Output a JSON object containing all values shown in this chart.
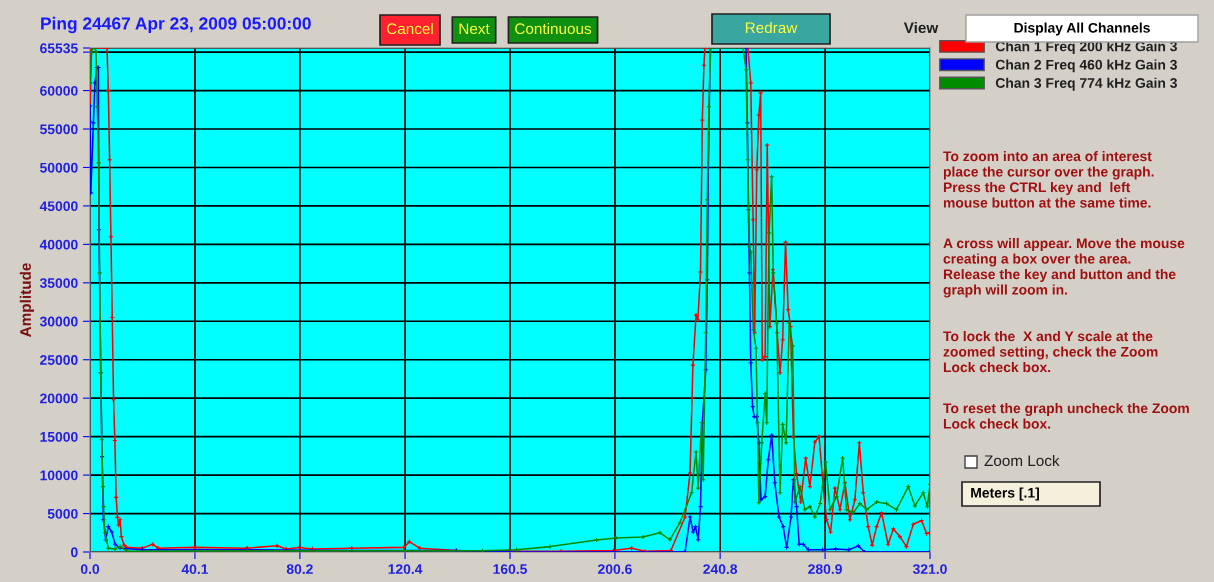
{
  "chart_data": {
    "type": "line",
    "title": "Ping 24467 Apr 23, 2009 05:00:00",
    "ylabel": "Amplitude",
    "xlim": [
      0,
      321
    ],
    "ylim": [
      0,
      65535
    ],
    "xticks": [
      {
        "value": 0,
        "label": "0.0"
      },
      40.1,
      80.2,
      120.4,
      160.5,
      200.6,
      240.8,
      280.9,
      {
        "value": 321,
        "label": "321.0"
      }
    ],
    "yticks": [
      0,
      5000,
      10000,
      15000,
      20000,
      25000,
      30000,
      35000,
      40000,
      45000,
      50000,
      55000,
      60000,
      {
        "value": 65000,
        "label": null
      },
      65535
    ],
    "grid": true,
    "legend": "top right",
    "marker": "cross",
    "line_style": "solid",
    "series": [
      {
        "name": "Chan 1 Freq 200 kHz Gain 3",
        "color": "#ff0000",
        "x": [
          0,
          0.5,
          6.5,
          7,
          7.5,
          8,
          8.5,
          9,
          9.5,
          10,
          10.5,
          11,
          11.5,
          12,
          13,
          14,
          20,
          24,
          26,
          40,
          60,
          71.5,
          75,
          80,
          85,
          100,
          120,
          122,
          126,
          140,
          160,
          180,
          200,
          207,
          212,
          222,
          227.4,
          229.3,
          230.4,
          231.6,
          232.3,
          233.3,
          234,
          234.6,
          235,
          251.4,
          252.5,
          253.4,
          254,
          254.8,
          255.6,
          256.3,
          256.9,
          258,
          258.8,
          259.8,
          261,
          262.6,
          263.7,
          264.7,
          265.8,
          266.8,
          267.7,
          268.8,
          270,
          271.6,
          273.5,
          275.1,
          277,
          278.6,
          280.2,
          281.5,
          283,
          284.7,
          286.6,
          288.5,
          290.4,
          292.3,
          294,
          295.5,
          297.4,
          298.9,
          300.6,
          302.5,
          305,
          307,
          309.5,
          312,
          314.6,
          317.8,
          319.7,
          321
        ],
        "values": [
          56000,
          65535,
          65535,
          60000,
          51000,
          41000,
          30500,
          19800,
          14500,
          7100,
          4500,
          3500,
          4200,
          2000,
          900,
          600,
          500,
          1000,
          500,
          600,
          500,
          800,
          400,
          600,
          400,
          500,
          600,
          1340,
          500,
          200,
          100,
          100,
          200,
          500,
          100,
          200,
          4550,
          10270,
          24300,
          30800,
          30200,
          36400,
          56160,
          63300,
          65535,
          65535,
          61000,
          43200,
          28500,
          49700,
          56800,
          59700,
          25000,
          25400,
          52900,
          29300,
          36700,
          28500,
          23300,
          27600,
          40300,
          31500,
          29300,
          15000,
          10200,
          6500,
          12200,
          8500,
          14300,
          15000,
          8500,
          4200,
          2600,
          8300,
          5500,
          9000,
          4200,
          6800,
          14200,
          7700,
          3300,
          900,
          3300,
          5100,
          1000,
          3000,
          2000,
          700,
          3600,
          4100,
          2400,
          2500
        ]
      },
      {
        "name": "Chan 2 Freq 460 kHz Gain 3",
        "color": "#0000ff",
        "x": [
          0,
          0.3,
          1.3,
          1.9,
          2.6,
          3.2,
          3.4,
          4.1,
          4.6,
          5.1,
          6,
          7,
          8.3,
          9.6,
          11.5,
          20,
          60,
          100,
          140,
          160,
          200,
          227.4,
          229.3,
          230.5,
          231.4,
          232.4,
          233.3,
          234,
          235.3,
          235.9,
          236.3,
          237,
          250.7,
          251.2,
          251.6,
          252,
          252.5,
          253.2,
          253.8,
          254.8,
          255.6,
          256.4,
          258,
          259.2,
          260.5,
          261.7,
          263.3,
          264.9,
          266.2,
          267.9,
          268.8,
          270,
          271,
          272.6,
          274.5,
          280,
          285,
          290,
          293.6,
          296,
          321
        ],
        "values": [
          58000,
          46700,
          55800,
          61000,
          63000,
          63000,
          41900,
          23300,
          12400,
          4200,
          1560,
          3300,
          2600,
          1000,
          500,
          300,
          300,
          200,
          200,
          0,
          0,
          0,
          4550,
          2600,
          3300,
          1600,
          5900,
          16800,
          23700,
          35400,
          50000,
          65535,
          65535,
          55800,
          44500,
          36300,
          24600,
          18900,
          17600,
          17600,
          14200,
          6800,
          7200,
          12000,
          15200,
          9000,
          4550,
          3300,
          600,
          4550,
          9400,
          5900,
          1000,
          1000,
          300,
          300,
          400,
          300,
          800,
          0,
          0
        ]
      },
      {
        "name": "Chan 3 Freq 774 kHz Gain 3",
        "color": "#008c00",
        "x": [
          0,
          0.6,
          1,
          1.9,
          2.3,
          2.8,
          3.3,
          3.7,
          4.1,
          4.5,
          4.9,
          5.2,
          5.7,
          7,
          9.6,
          11.5,
          14,
          60,
          120,
          150,
          163,
          175.8,
          193.6,
          201,
          211.3,
          217.8,
          221.6,
          225.4,
          229.9,
          231.6,
          232.4,
          233.7,
          234.3,
          235.3,
          235.9,
          236.5,
          237.2,
          249.6,
          250.7,
          251.3,
          252,
          252.5,
          253.5,
          254.5,
          255.1,
          255.6,
          256.7,
          258,
          258.6,
          259.5,
          260.5,
          261.1,
          262.4,
          263.7,
          264.7,
          266,
          267.2,
          268.5,
          269.4,
          271.3,
          273.2,
          275.1,
          277,
          279,
          281.1,
          282.8,
          285.3,
          287.6,
          289.1,
          291.7,
          294.2,
          296.8,
          300.6,
          304.4,
          308.2,
          312.7,
          315.2,
          318.4,
          320,
          321
        ],
        "values": [
          61000,
          65000,
          65535,
          65535,
          65000,
          57900,
          50600,
          36300,
          23300,
          14600,
          8500,
          5900,
          2500,
          500,
          400,
          700,
          100,
          150,
          150,
          150,
          300,
          700,
          1560,
          1820,
          1950,
          2500,
          1600,
          3800,
          7700,
          13000,
          8300,
          16800,
          9400,
          28500,
          45800,
          57900,
          65535,
          65535,
          62700,
          51000,
          39700,
          39000,
          28900,
          26500,
          16800,
          6400,
          14200,
          20600,
          16800,
          41500,
          48800,
          36300,
          29800,
          7700,
          16600,
          14200,
          29800,
          26800,
          6500,
          8500,
          5500,
          5900,
          4550,
          6300,
          11700,
          5500,
          7200,
          12200,
          5500,
          5100,
          6300,
          5500,
          6500,
          6300,
          5500,
          8500,
          6000,
          7700,
          5900,
          8800
        ]
      }
    ],
    "annotations": [
      "Cancel",
      "Next",
      "Continuous",
      "Redraw",
      "View",
      "Display All Channels",
      "To zoom into an area of interest\nplace the cursor over the graph.\nPress the CTRL key and  left\nmouse button at the same time.",
      "A cross will appear. Move the mouse\ncreating a box over the area.\nRelease the key and button and the\ngraph will zoom in.",
      "To lock the  X and Y scale at the\nzoomed setting, check the Zoom\nLock check box.",
      "To reset the graph uncheck the Zoom\nLock check box.",
      "Zoom Lock",
      "Meters [.1]"
    ]
  }
}
